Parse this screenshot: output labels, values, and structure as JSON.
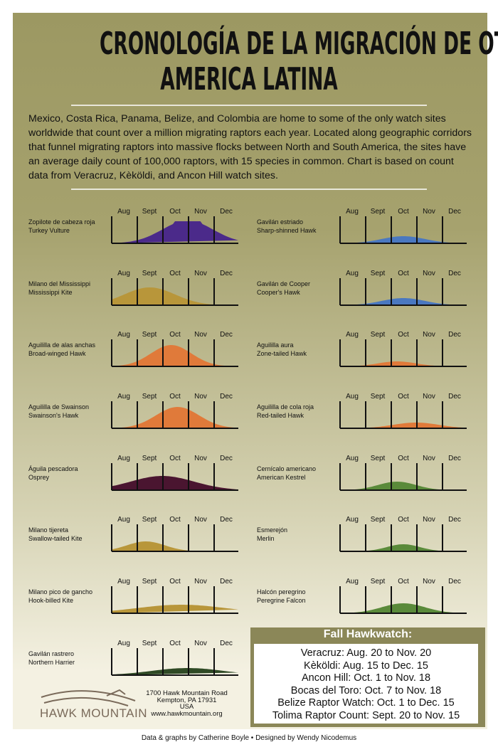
{
  "header": {
    "title": [
      "CRONOLOGÍA DE LA MIGRACIÓN DE OTOÑO EN",
      "AMERICA LATINA"
    ],
    "intro": "Mexico, Costa Rica, Panama, Belize, and Colombia are home to some of the only watch sites worldwide that count over a million migrating raptors each year. Located along geographic corridors that funnel migrating raptors into massive flocks between North and South America, the sites have an average daily count of 100,000 raptors, with 15 species in common. Chart is based on count data from Veracruz, Kèköldi, and Ancon Hill watch sites."
  },
  "months": [
    "Aug",
    "Sept",
    "Oct",
    "Nov",
    "Dec"
  ],
  "species": [
    {
      "spanish": "Zopilote de cabeza roja",
      "english": "Turkey Vulture"
    },
    {
      "spanish": "Milano del Mississippi",
      "english": "Mississippi Kite"
    },
    {
      "spanish": "Aguililla de alas anchas",
      "english": "Broad-winged Hawk"
    },
    {
      "spanish": "Aguililla de Swainson",
      "english": "Swainson's Hawk"
    },
    {
      "spanish": "Águila pescadora",
      "english": "Osprey"
    },
    {
      "spanish": "Milano tijereta",
      "english": "Swallow-tailed Kite"
    },
    {
      "spanish": "Milano pico de gancho",
      "english": "Hook-billed Kite"
    },
    {
      "spanish": "Gavilán rastrero",
      "english": "Northern Harrier"
    },
    {
      "spanish": "Gavilán estriado",
      "english": "Sharp-shinned Hawk"
    },
    {
      "spanish": "Gavilán de Cooper",
      "english": "Cooper's Hawk"
    },
    {
      "spanish": "Aguililla aura",
      "english": "Zone-tailed Hawk"
    },
    {
      "spanish": "Aguililla de cola roja",
      "english": "Red-tailed Hawk"
    },
    {
      "spanish": "Cernícalo americano",
      "english": "American Kestrel"
    },
    {
      "spanish": "Esmerejón",
      "english": "Merlin"
    },
    {
      "spanish": "Halcón peregrino",
      "english": "Peregrine Falcon"
    }
  ],
  "hawkwatch": {
    "title": "Fall Hawkwatch:",
    "sites": [
      "Veracruz: Aug. 20 to Nov. 20",
      "Kèköldi: Aug. 15 to Dec. 15",
      "Ancon Hill: Oct. 1 to Nov. 18",
      "Bocas del Toro: Oct. 7 to Nov. 18",
      "Belize Raptor Watch: Oct. 1 to Dec. 15",
      "Tolima Raptor Count: Sept. 20 to Nov. 15"
    ]
  },
  "logo": "HAWK MOUNTAIN",
  "address": [
    "1700 Hawk Mountain Road",
    "Kempton, PA 17931",
    "USA",
    "www.hawkmountain.org"
  ],
  "footer": "Data & graphs by Catherine Boyle • Designed by Wendy Nicodemus"
}
